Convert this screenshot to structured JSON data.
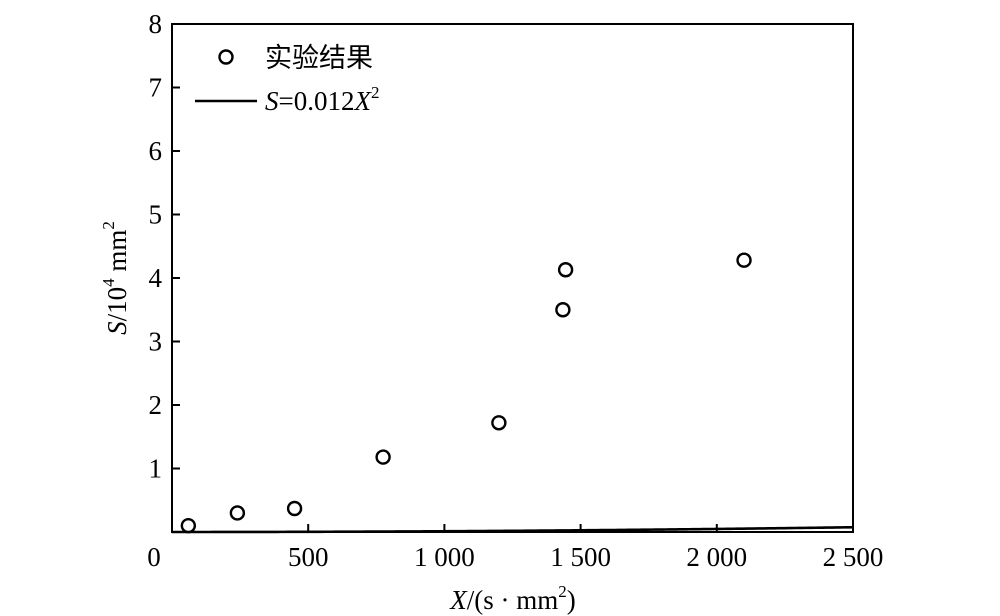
{
  "chart_data": {
    "type": "scatter",
    "title": "",
    "xlim": [
      0,
      2500
    ],
    "ylim": [
      0,
      8
    ],
    "x_ticks": [
      {
        "value": 0,
        "label": "0"
      },
      {
        "value": 500,
        "label": "500"
      },
      {
        "value": 1000,
        "label": "1 000"
      },
      {
        "value": 1500,
        "label": "1 500"
      },
      {
        "value": 2000,
        "label": "2 000"
      },
      {
        "value": 2500,
        "label": "2 500"
      }
    ],
    "y_ticks": [
      {
        "value": 1,
        "label": "1"
      },
      {
        "value": 2,
        "label": "2"
      },
      {
        "value": 3,
        "label": "3"
      },
      {
        "value": 4,
        "label": "4"
      },
      {
        "value": 5,
        "label": "5"
      },
      {
        "value": 6,
        "label": "6"
      },
      {
        "value": 7,
        "label": "7"
      },
      {
        "value": 8,
        "label": "8"
      }
    ],
    "xlabel": {
      "var": "X",
      "rest": "/(s · mm",
      "sup": "2",
      "close": ")"
    },
    "ylabel": {
      "var": "S",
      "mid": "/10",
      "sup1": "4",
      "unit": " mm",
      "sup2": "2"
    },
    "grid": false,
    "legend_position": "top-left",
    "series": [
      {
        "name": "实验结果",
        "kind": "scatter",
        "marker": "open-circle",
        "points": [
          {
            "x": 60,
            "y": 0.1
          },
          {
            "x": 240,
            "y": 0.3
          },
          {
            "x": 450,
            "y": 0.37
          },
          {
            "x": 775,
            "y": 1.18
          },
          {
            "x": 1200,
            "y": 1.72
          },
          {
            "x": 1435,
            "y": 3.5
          },
          {
            "x": 1445,
            "y": 4.13
          },
          {
            "x": 2100,
            "y": 4.28
          }
        ]
      },
      {
        "name": "S=0.012X²",
        "legend_label": {
          "var1": "S",
          "mid": "=0.012",
          "var2": "X",
          "sup": "2"
        },
        "kind": "line",
        "formula": {
          "coef": 0.012,
          "power": 2,
          "x_scale": 100
        },
        "x_range": [
          0,
          2500
        ]
      }
    ]
  }
}
